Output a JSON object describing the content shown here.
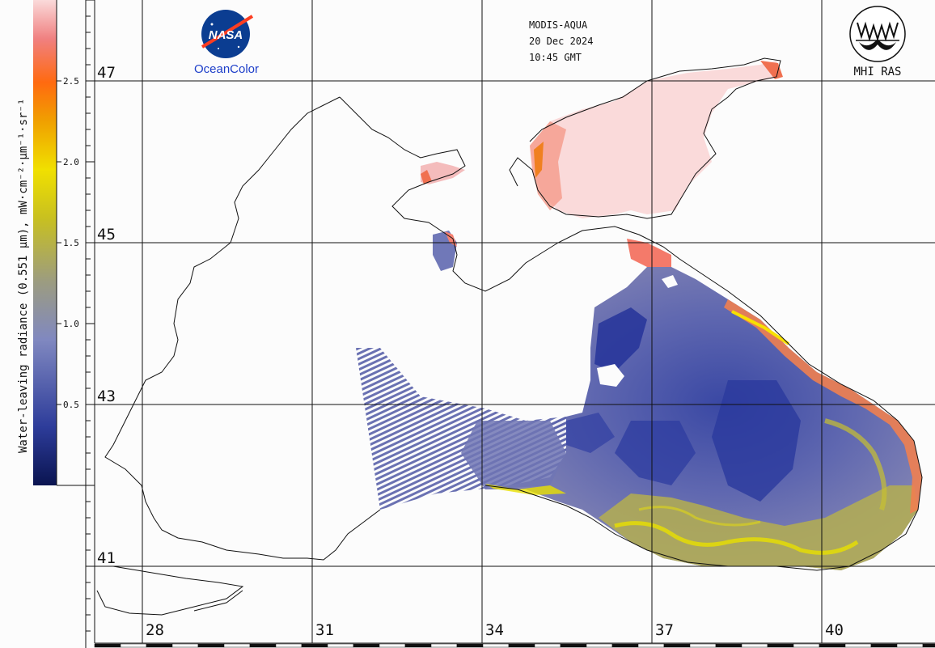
{
  "header": {
    "sensor": "MODIS-AQUA",
    "date": "20 Dec 2024",
    "time": "10:45 GMT"
  },
  "logos": {
    "nasa_text": "NASA",
    "oceancolor_text": "OceanColor",
    "mhi_text": "MHI RAS"
  },
  "colorbar": {
    "title": "Water-leaving radiance (0.551 µm), mW·cm⁻²·µm⁻¹·sr⁻¹",
    "ticks": [
      "2.5",
      "2.0",
      "1.5",
      "1.0",
      "0.5"
    ],
    "tick_values": [
      2.5,
      2.0,
      1.5,
      1.0,
      0.5
    ],
    "range": [
      0,
      3.0
    ],
    "colors": [
      "#0a1450",
      "#2d3c9a",
      "#8088c0",
      "#9c9c80",
      "#c8c020",
      "#f0e000",
      "#f0a000",
      "#ff6a10",
      "#f08080",
      "#fadada"
    ]
  },
  "axes": {
    "lat_labels": [
      "47",
      "45",
      "43",
      "41"
    ],
    "lon_labels": [
      "28",
      "31",
      "34",
      "37",
      "40"
    ]
  },
  "colors": {
    "background": "#fcfcfc",
    "coast": "#111111",
    "grid": "#111111",
    "deep_blue": "#2a3a98",
    "mid_blue": "#6e74b8",
    "olive": "#a4a26a",
    "yellow": "#e8e000",
    "pink": "#f8d6d6",
    "red": "#f06a5a"
  }
}
